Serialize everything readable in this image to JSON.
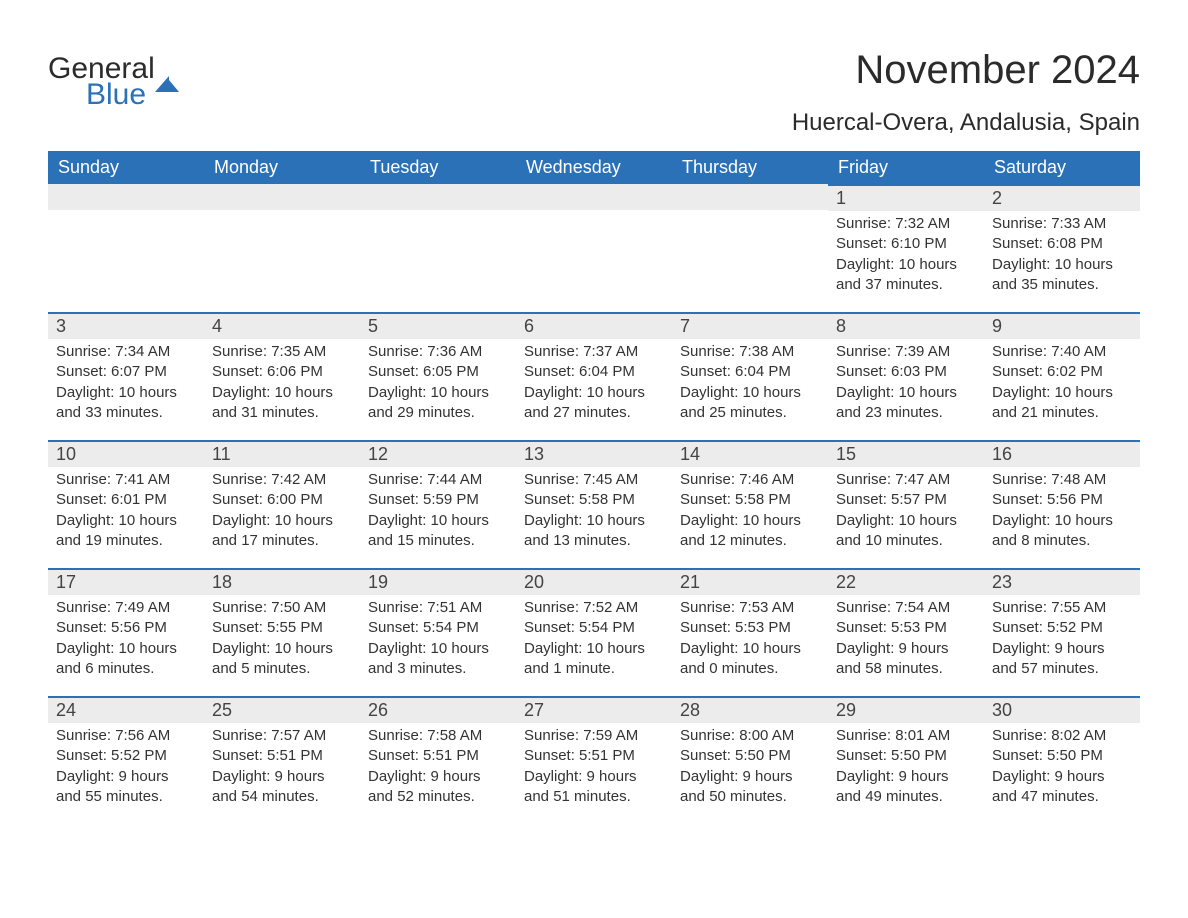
{
  "brand": {
    "general": "General",
    "blue": "Blue"
  },
  "title": "November 2024",
  "location": "Huercal-Overa, Andalusia, Spain",
  "colors": {
    "header_bg": "#2a71b8",
    "header_text": "#ffffff",
    "day_bar_bg": "#ececec",
    "day_bar_border": "#2a71b8",
    "body_text": "#333333",
    "page_bg": "#ffffff"
  },
  "weekdays": [
    "Sunday",
    "Monday",
    "Tuesday",
    "Wednesday",
    "Thursday",
    "Friday",
    "Saturday"
  ],
  "weeks": [
    [
      {
        "day": "",
        "sunrise": "",
        "sunset": "",
        "daylight": ""
      },
      {
        "day": "",
        "sunrise": "",
        "sunset": "",
        "daylight": ""
      },
      {
        "day": "",
        "sunrise": "",
        "sunset": "",
        "daylight": ""
      },
      {
        "day": "",
        "sunrise": "",
        "sunset": "",
        "daylight": ""
      },
      {
        "day": "",
        "sunrise": "",
        "sunset": "",
        "daylight": ""
      },
      {
        "day": "1",
        "sunrise": "Sunrise: 7:32 AM",
        "sunset": "Sunset: 6:10 PM",
        "daylight": "Daylight: 10 hours and 37 minutes."
      },
      {
        "day": "2",
        "sunrise": "Sunrise: 7:33 AM",
        "sunset": "Sunset: 6:08 PM",
        "daylight": "Daylight: 10 hours and 35 minutes."
      }
    ],
    [
      {
        "day": "3",
        "sunrise": "Sunrise: 7:34 AM",
        "sunset": "Sunset: 6:07 PM",
        "daylight": "Daylight: 10 hours and 33 minutes."
      },
      {
        "day": "4",
        "sunrise": "Sunrise: 7:35 AM",
        "sunset": "Sunset: 6:06 PM",
        "daylight": "Daylight: 10 hours and 31 minutes."
      },
      {
        "day": "5",
        "sunrise": "Sunrise: 7:36 AM",
        "sunset": "Sunset: 6:05 PM",
        "daylight": "Daylight: 10 hours and 29 minutes."
      },
      {
        "day": "6",
        "sunrise": "Sunrise: 7:37 AM",
        "sunset": "Sunset: 6:04 PM",
        "daylight": "Daylight: 10 hours and 27 minutes."
      },
      {
        "day": "7",
        "sunrise": "Sunrise: 7:38 AM",
        "sunset": "Sunset: 6:04 PM",
        "daylight": "Daylight: 10 hours and 25 minutes."
      },
      {
        "day": "8",
        "sunrise": "Sunrise: 7:39 AM",
        "sunset": "Sunset: 6:03 PM",
        "daylight": "Daylight: 10 hours and 23 minutes."
      },
      {
        "day": "9",
        "sunrise": "Sunrise: 7:40 AM",
        "sunset": "Sunset: 6:02 PM",
        "daylight": "Daylight: 10 hours and 21 minutes."
      }
    ],
    [
      {
        "day": "10",
        "sunrise": "Sunrise: 7:41 AM",
        "sunset": "Sunset: 6:01 PM",
        "daylight": "Daylight: 10 hours and 19 minutes."
      },
      {
        "day": "11",
        "sunrise": "Sunrise: 7:42 AM",
        "sunset": "Sunset: 6:00 PM",
        "daylight": "Daylight: 10 hours and 17 minutes."
      },
      {
        "day": "12",
        "sunrise": "Sunrise: 7:44 AM",
        "sunset": "Sunset: 5:59 PM",
        "daylight": "Daylight: 10 hours and 15 minutes."
      },
      {
        "day": "13",
        "sunrise": "Sunrise: 7:45 AM",
        "sunset": "Sunset: 5:58 PM",
        "daylight": "Daylight: 10 hours and 13 minutes."
      },
      {
        "day": "14",
        "sunrise": "Sunrise: 7:46 AM",
        "sunset": "Sunset: 5:58 PM",
        "daylight": "Daylight: 10 hours and 12 minutes."
      },
      {
        "day": "15",
        "sunrise": "Sunrise: 7:47 AM",
        "sunset": "Sunset: 5:57 PM",
        "daylight": "Daylight: 10 hours and 10 minutes."
      },
      {
        "day": "16",
        "sunrise": "Sunrise: 7:48 AM",
        "sunset": "Sunset: 5:56 PM",
        "daylight": "Daylight: 10 hours and 8 minutes."
      }
    ],
    [
      {
        "day": "17",
        "sunrise": "Sunrise: 7:49 AM",
        "sunset": "Sunset: 5:56 PM",
        "daylight": "Daylight: 10 hours and 6 minutes."
      },
      {
        "day": "18",
        "sunrise": "Sunrise: 7:50 AM",
        "sunset": "Sunset: 5:55 PM",
        "daylight": "Daylight: 10 hours and 5 minutes."
      },
      {
        "day": "19",
        "sunrise": "Sunrise: 7:51 AM",
        "sunset": "Sunset: 5:54 PM",
        "daylight": "Daylight: 10 hours and 3 minutes."
      },
      {
        "day": "20",
        "sunrise": "Sunrise: 7:52 AM",
        "sunset": "Sunset: 5:54 PM",
        "daylight": "Daylight: 10 hours and 1 minute."
      },
      {
        "day": "21",
        "sunrise": "Sunrise: 7:53 AM",
        "sunset": "Sunset: 5:53 PM",
        "daylight": "Daylight: 10 hours and 0 minutes."
      },
      {
        "day": "22",
        "sunrise": "Sunrise: 7:54 AM",
        "sunset": "Sunset: 5:53 PM",
        "daylight": "Daylight: 9 hours and 58 minutes."
      },
      {
        "day": "23",
        "sunrise": "Sunrise: 7:55 AM",
        "sunset": "Sunset: 5:52 PM",
        "daylight": "Daylight: 9 hours and 57 minutes."
      }
    ],
    [
      {
        "day": "24",
        "sunrise": "Sunrise: 7:56 AM",
        "sunset": "Sunset: 5:52 PM",
        "daylight": "Daylight: 9 hours and 55 minutes."
      },
      {
        "day": "25",
        "sunrise": "Sunrise: 7:57 AM",
        "sunset": "Sunset: 5:51 PM",
        "daylight": "Daylight: 9 hours and 54 minutes."
      },
      {
        "day": "26",
        "sunrise": "Sunrise: 7:58 AM",
        "sunset": "Sunset: 5:51 PM",
        "daylight": "Daylight: 9 hours and 52 minutes."
      },
      {
        "day": "27",
        "sunrise": "Sunrise: 7:59 AM",
        "sunset": "Sunset: 5:51 PM",
        "daylight": "Daylight: 9 hours and 51 minutes."
      },
      {
        "day": "28",
        "sunrise": "Sunrise: 8:00 AM",
        "sunset": "Sunset: 5:50 PM",
        "daylight": "Daylight: 9 hours and 50 minutes."
      },
      {
        "day": "29",
        "sunrise": "Sunrise: 8:01 AM",
        "sunset": "Sunset: 5:50 PM",
        "daylight": "Daylight: 9 hours and 49 minutes."
      },
      {
        "day": "30",
        "sunrise": "Sunrise: 8:02 AM",
        "sunset": "Sunset: 5:50 PM",
        "daylight": "Daylight: 9 hours and 47 minutes."
      }
    ]
  ]
}
